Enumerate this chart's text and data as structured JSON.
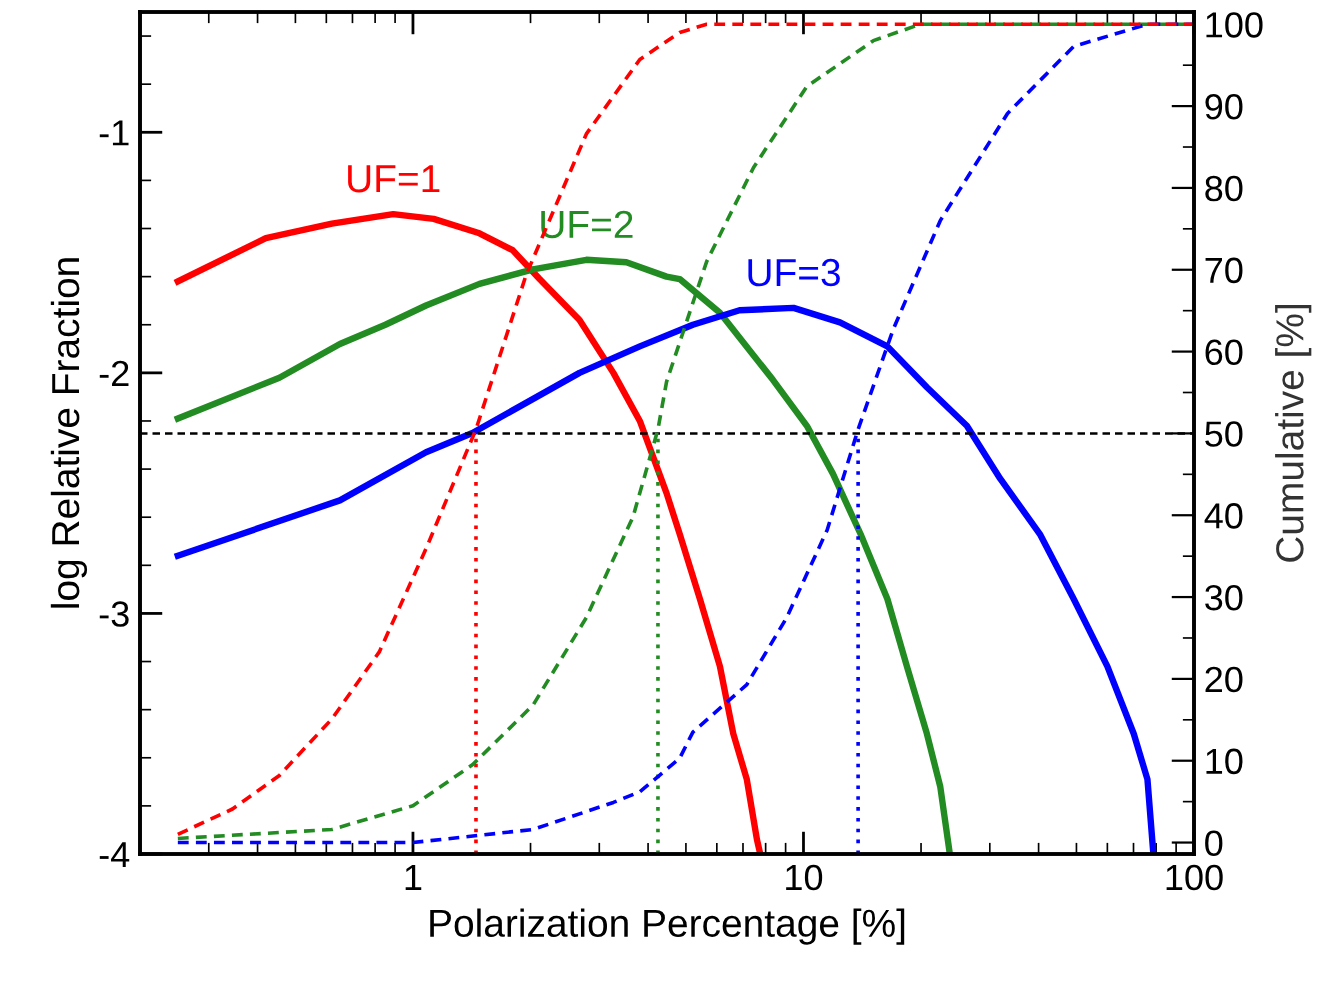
{
  "chart_data": {
    "type": "line",
    "xlabel": "Polarization Percentage [%]",
    "ylabel": "log Relative Fraction",
    "y2label": "Cumulative [%]",
    "log": "x",
    "xlim": [
      0.2,
      100
    ],
    "xticks": [
      1,
      10,
      100
    ],
    "ylim": [
      -4,
      -0.5
    ],
    "yticks": [
      -4,
      -3,
      -2,
      -1
    ],
    "y2lim": [
      -1.4,
      101.5
    ],
    "y2ticks": [
      0,
      10,
      20,
      30,
      40,
      50,
      60,
      70,
      80,
      90,
      100
    ],
    "ref_lines": [
      {
        "axis": "y2",
        "value": 50,
        "color": "#000000",
        "line_style": "dashed"
      }
    ],
    "series": [
      {
        "color": "#ff0000",
        "axis": "y2",
        "line_style": "dotted",
        "x": [
          1.45,
          1.45
        ],
        "values": [
          -1.4,
          50
        ]
      },
      {
        "color": "#228b22",
        "axis": "y2",
        "line_style": "dotted",
        "x": [
          4.24,
          4.24
        ],
        "values": [
          -1.4,
          50
        ]
      },
      {
        "color": "#0000ff",
        "axis": "y2",
        "line_style": "dotted",
        "x": [
          13.8,
          13.8
        ],
        "values": [
          -1.4,
          50
        ]
      },
      {
        "color": "#228b22",
        "axis": "y2",
        "line_style": "dashed",
        "x": [
          0.25,
          0.62,
          1.0,
          1.42,
          2.03,
          2.78,
          3.66,
          4.24,
          4.46,
          5.65,
          7.45,
          10.2,
          15.1,
          19.9,
          30,
          100
        ],
        "values": [
          0.5,
          1.6,
          4.5,
          9.5,
          16.8,
          27.5,
          39.8,
          50.5,
          56.3,
          71,
          82.5,
          92.4,
          98,
          100,
          100,
          100
        ]
      },
      {
        "color": "#0000ff",
        "axis": "y2",
        "line_style": "dashed",
        "x": [
          0.25,
          1.0,
          2.03,
          3.26,
          3.81,
          4.82,
          5.21,
          7.16,
          9.06,
          11.5,
          13.8,
          17.0,
          22.4,
          33.3,
          49.2,
          76,
          100
        ],
        "values": [
          0,
          0,
          1.6,
          4.9,
          6.2,
          10.3,
          13.5,
          19.3,
          27.5,
          38.2,
          50.5,
          62.8,
          76,
          89.1,
          97.3,
          100,
          100
        ]
      },
      {
        "color": "#ff0000",
        "axis": "y2",
        "line_style": "dashed",
        "x": [
          0.25,
          0.345,
          0.455,
          0.62,
          0.82,
          1.08,
          1.45,
          1.95,
          2.78,
          3.81,
          4.82,
          5.65,
          8,
          100
        ],
        "values": [
          1.0,
          4.1,
          8.2,
          15.1,
          23.3,
          35.9,
          50.5,
          69.4,
          86.6,
          95.7,
          99,
          100,
          100,
          100
        ]
      },
      {
        "name": "UF=1",
        "color": "#ff0000",
        "line_style": "solid",
        "x": [
          0.25,
          0.42,
          0.62,
          0.89,
          1.13,
          1.48,
          1.8,
          2.11,
          2.67,
          3.26,
          3.81,
          4.46,
          4.82,
          5.43,
          6.11,
          6.61,
          7.16,
          7.6,
          7.75
        ],
        "values": [
          -1.62,
          -1.44,
          -1.38,
          -1.34,
          -1.36,
          -1.42,
          -1.49,
          -1.61,
          -1.78,
          -2.0,
          -2.2,
          -2.5,
          -2.67,
          -2.94,
          -3.22,
          -3.5,
          -3.69,
          -3.94,
          -4.0
        ]
      },
      {
        "name": "UF=2",
        "color": "#228b22",
        "line_style": "solid",
        "x": [
          0.25,
          0.455,
          0.65,
          0.85,
          1.08,
          1.48,
          2.03,
          2.78,
          3.52,
          4.46,
          4.82,
          6.11,
          8.36,
          10.2,
          11.9,
          14.0,
          16.4,
          18.4,
          20.7,
          22.4,
          23.7
        ],
        "values": [
          -2.19,
          -2.02,
          -1.88,
          -1.8,
          -1.72,
          -1.63,
          -1.57,
          -1.53,
          -1.54,
          -1.6,
          -1.61,
          -1.75,
          -2.03,
          -2.22,
          -2.42,
          -2.67,
          -2.94,
          -3.22,
          -3.5,
          -3.72,
          -4.0
        ]
      },
      {
        "name": "UF=3",
        "color": "#0000ff",
        "line_style": "solid",
        "x": [
          0.25,
          0.65,
          1.08,
          1.42,
          2.67,
          3.81,
          5.21,
          6.86,
          9.43,
          12.4,
          16.4,
          20.7,
          26.2,
          31.9,
          40.3,
          49.2,
          60,
          70.1,
          76,
          78.7
        ],
        "values": [
          -2.76,
          -2.53,
          -2.33,
          -2.25,
          -2.0,
          -1.89,
          -1.8,
          -1.74,
          -1.73,
          -1.79,
          -1.89,
          -2.06,
          -2.22,
          -2.44,
          -2.67,
          -2.94,
          -3.22,
          -3.5,
          -3.69,
          -4.0
        ]
      }
    ]
  }
}
